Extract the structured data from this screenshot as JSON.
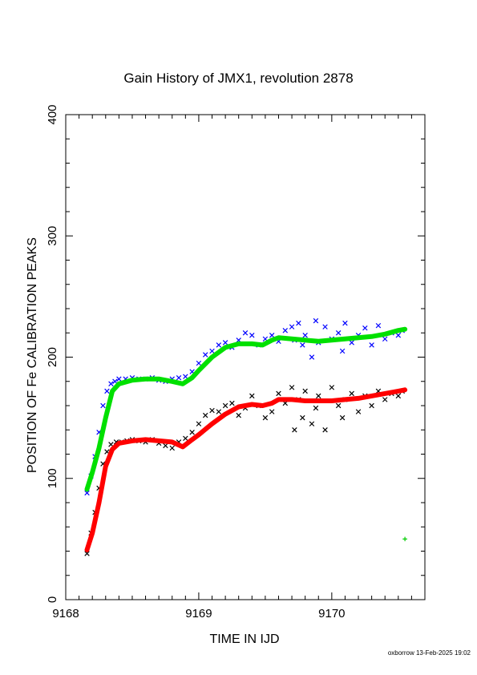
{
  "chart_data": {
    "type": "scatter",
    "title": "Gain History of JMX1, revolution 2878",
    "xlabel": "TIME IN IJD",
    "ylabel": "POSITION OF Fe CALIBRATION PEAKS",
    "xlim": [
      9168.0,
      9170.7
    ],
    "ylim": [
      0,
      400
    ],
    "x_ticks": [
      9168,
      9169,
      9170
    ],
    "y_ticks": [
      0,
      100,
      200,
      300,
      400
    ],
    "x_tick_labels": [
      "9168",
      "9169",
      "9170"
    ],
    "y_tick_labels": [
      "0",
      "100",
      "200",
      "300",
      "400"
    ],
    "grid": false,
    "legend": "none",
    "series": [
      {
        "color": "#0000ff",
        "marker": "x",
        "x": [
          9168.16,
          9168.19,
          9168.22,
          9168.25,
          9168.28,
          9168.31,
          9168.34,
          9168.37,
          9168.4,
          9168.45,
          9168.5,
          9168.55,
          9168.6,
          9168.65,
          9168.7,
          9168.75,
          9168.8,
          9168.85,
          9168.9,
          9168.95,
          9169.0,
          9169.05,
          9169.1,
          9169.15,
          9169.2,
          9169.25,
          9169.3,
          9169.35,
          9169.4,
          9169.45,
          9169.5,
          9169.55,
          9169.6,
          9169.65,
          9169.7,
          9169.72,
          9169.75,
          9169.78,
          9169.8,
          9169.85,
          9169.88,
          9169.9,
          9169.95,
          9170.0,
          9170.05,
          9170.08,
          9170.1,
          9170.15,
          9170.2,
          9170.25,
          9170.3,
          9170.35,
          9170.4,
          9170.45,
          9170.5,
          9170.53
        ],
        "y": [
          88,
          102,
          118,
          138,
          160,
          172,
          178,
          180,
          182,
          182,
          183,
          182,
          182,
          183,
          181,
          180,
          182,
          183,
          184,
          188,
          195,
          202,
          205,
          210,
          212,
          208,
          214,
          220,
          218,
          210,
          215,
          218,
          213,
          222,
          225,
          214,
          228,
          210,
          218,
          200,
          230,
          212,
          225,
          215,
          220,
          205,
          228,
          212,
          218,
          224,
          210,
          226,
          215,
          220,
          218,
          222
        ]
      },
      {
        "color": "#000000",
        "marker": "x",
        "x": [
          9168.16,
          9168.19,
          9168.22,
          9168.25,
          9168.28,
          9168.31,
          9168.34,
          9168.38,
          9168.42,
          9168.46,
          9168.5,
          9168.55,
          9168.6,
          9168.65,
          9168.7,
          9168.75,
          9168.8,
          9168.85,
          9168.9,
          9168.95,
          9169.0,
          9169.05,
          9169.1,
          9169.15,
          9169.2,
          9169.25,
          9169.3,
          9169.35,
          9169.4,
          9169.45,
          9169.5,
          9169.55,
          9169.6,
          9169.65,
          9169.7,
          9169.72,
          9169.75,
          9169.78,
          9169.8,
          9169.85,
          9169.88,
          9169.9,
          9169.95,
          9170.0,
          9170.05,
          9170.08,
          9170.1,
          9170.15,
          9170.2,
          9170.25,
          9170.3,
          9170.35,
          9170.4,
          9170.45,
          9170.5,
          9170.53
        ],
        "y": [
          38,
          55,
          72,
          92,
          112,
          122,
          128,
          130,
          130,
          131,
          132,
          131,
          130,
          132,
          129,
          127,
          125,
          130,
          133,
          138,
          145,
          152,
          156,
          155,
          160,
          162,
          152,
          158,
          168,
          160,
          150,
          155,
          170,
          162,
          175,
          140,
          165,
          150,
          172,
          145,
          158,
          168,
          140,
          175,
          160,
          150,
          165,
          170,
          155,
          168,
          160,
          172,
          165,
          170,
          168,
          172
        ]
      },
      {
        "color": "#00e000",
        "marker": "line",
        "x": [
          9168.16,
          9168.2,
          9168.25,
          9168.3,
          9168.35,
          9168.4,
          9168.5,
          9168.6,
          9168.7,
          9168.8,
          9168.88,
          9168.95,
          9169.0,
          9169.1,
          9169.2,
          9169.3,
          9169.4,
          9169.48,
          9169.55,
          9169.6,
          9169.7,
          9169.8,
          9169.9,
          9170.0,
          9170.1,
          9170.2,
          9170.3,
          9170.4,
          9170.5,
          9170.55
        ],
        "y": [
          91,
          105,
          125,
          150,
          172,
          178,
          181,
          182,
          182,
          180,
          178,
          183,
          189,
          200,
          208,
          211,
          211,
          210,
          214,
          216,
          215,
          214,
          213,
          214,
          215,
          216,
          217,
          219,
          222,
          223
        ]
      },
      {
        "color": "#ff0000",
        "marker": "line",
        "x": [
          9168.16,
          9168.2,
          9168.25,
          9168.3,
          9168.35,
          9168.4,
          9168.5,
          9168.6,
          9168.7,
          9168.8,
          9168.88,
          9168.95,
          9169.0,
          9169.1,
          9169.2,
          9169.3,
          9169.4,
          9169.48,
          9169.55,
          9169.6,
          9169.7,
          9169.8,
          9169.9,
          9170.0,
          9170.1,
          9170.2,
          9170.3,
          9170.4,
          9170.5,
          9170.55
        ],
        "y": [
          41,
          55,
          80,
          110,
          124,
          129,
          131,
          132,
          131,
          130,
          126,
          132,
          136,
          145,
          153,
          159,
          161,
          160,
          162,
          165,
          165,
          164,
          164,
          164,
          165,
          166,
          168,
          170,
          172,
          173
        ]
      },
      {
        "color": "#00cc00",
        "marker": "+",
        "x": [
          9170.55
        ],
        "y": [
          50
        ]
      }
    ]
  },
  "footer": "oxborrow 13-Feb-2025 19:02"
}
